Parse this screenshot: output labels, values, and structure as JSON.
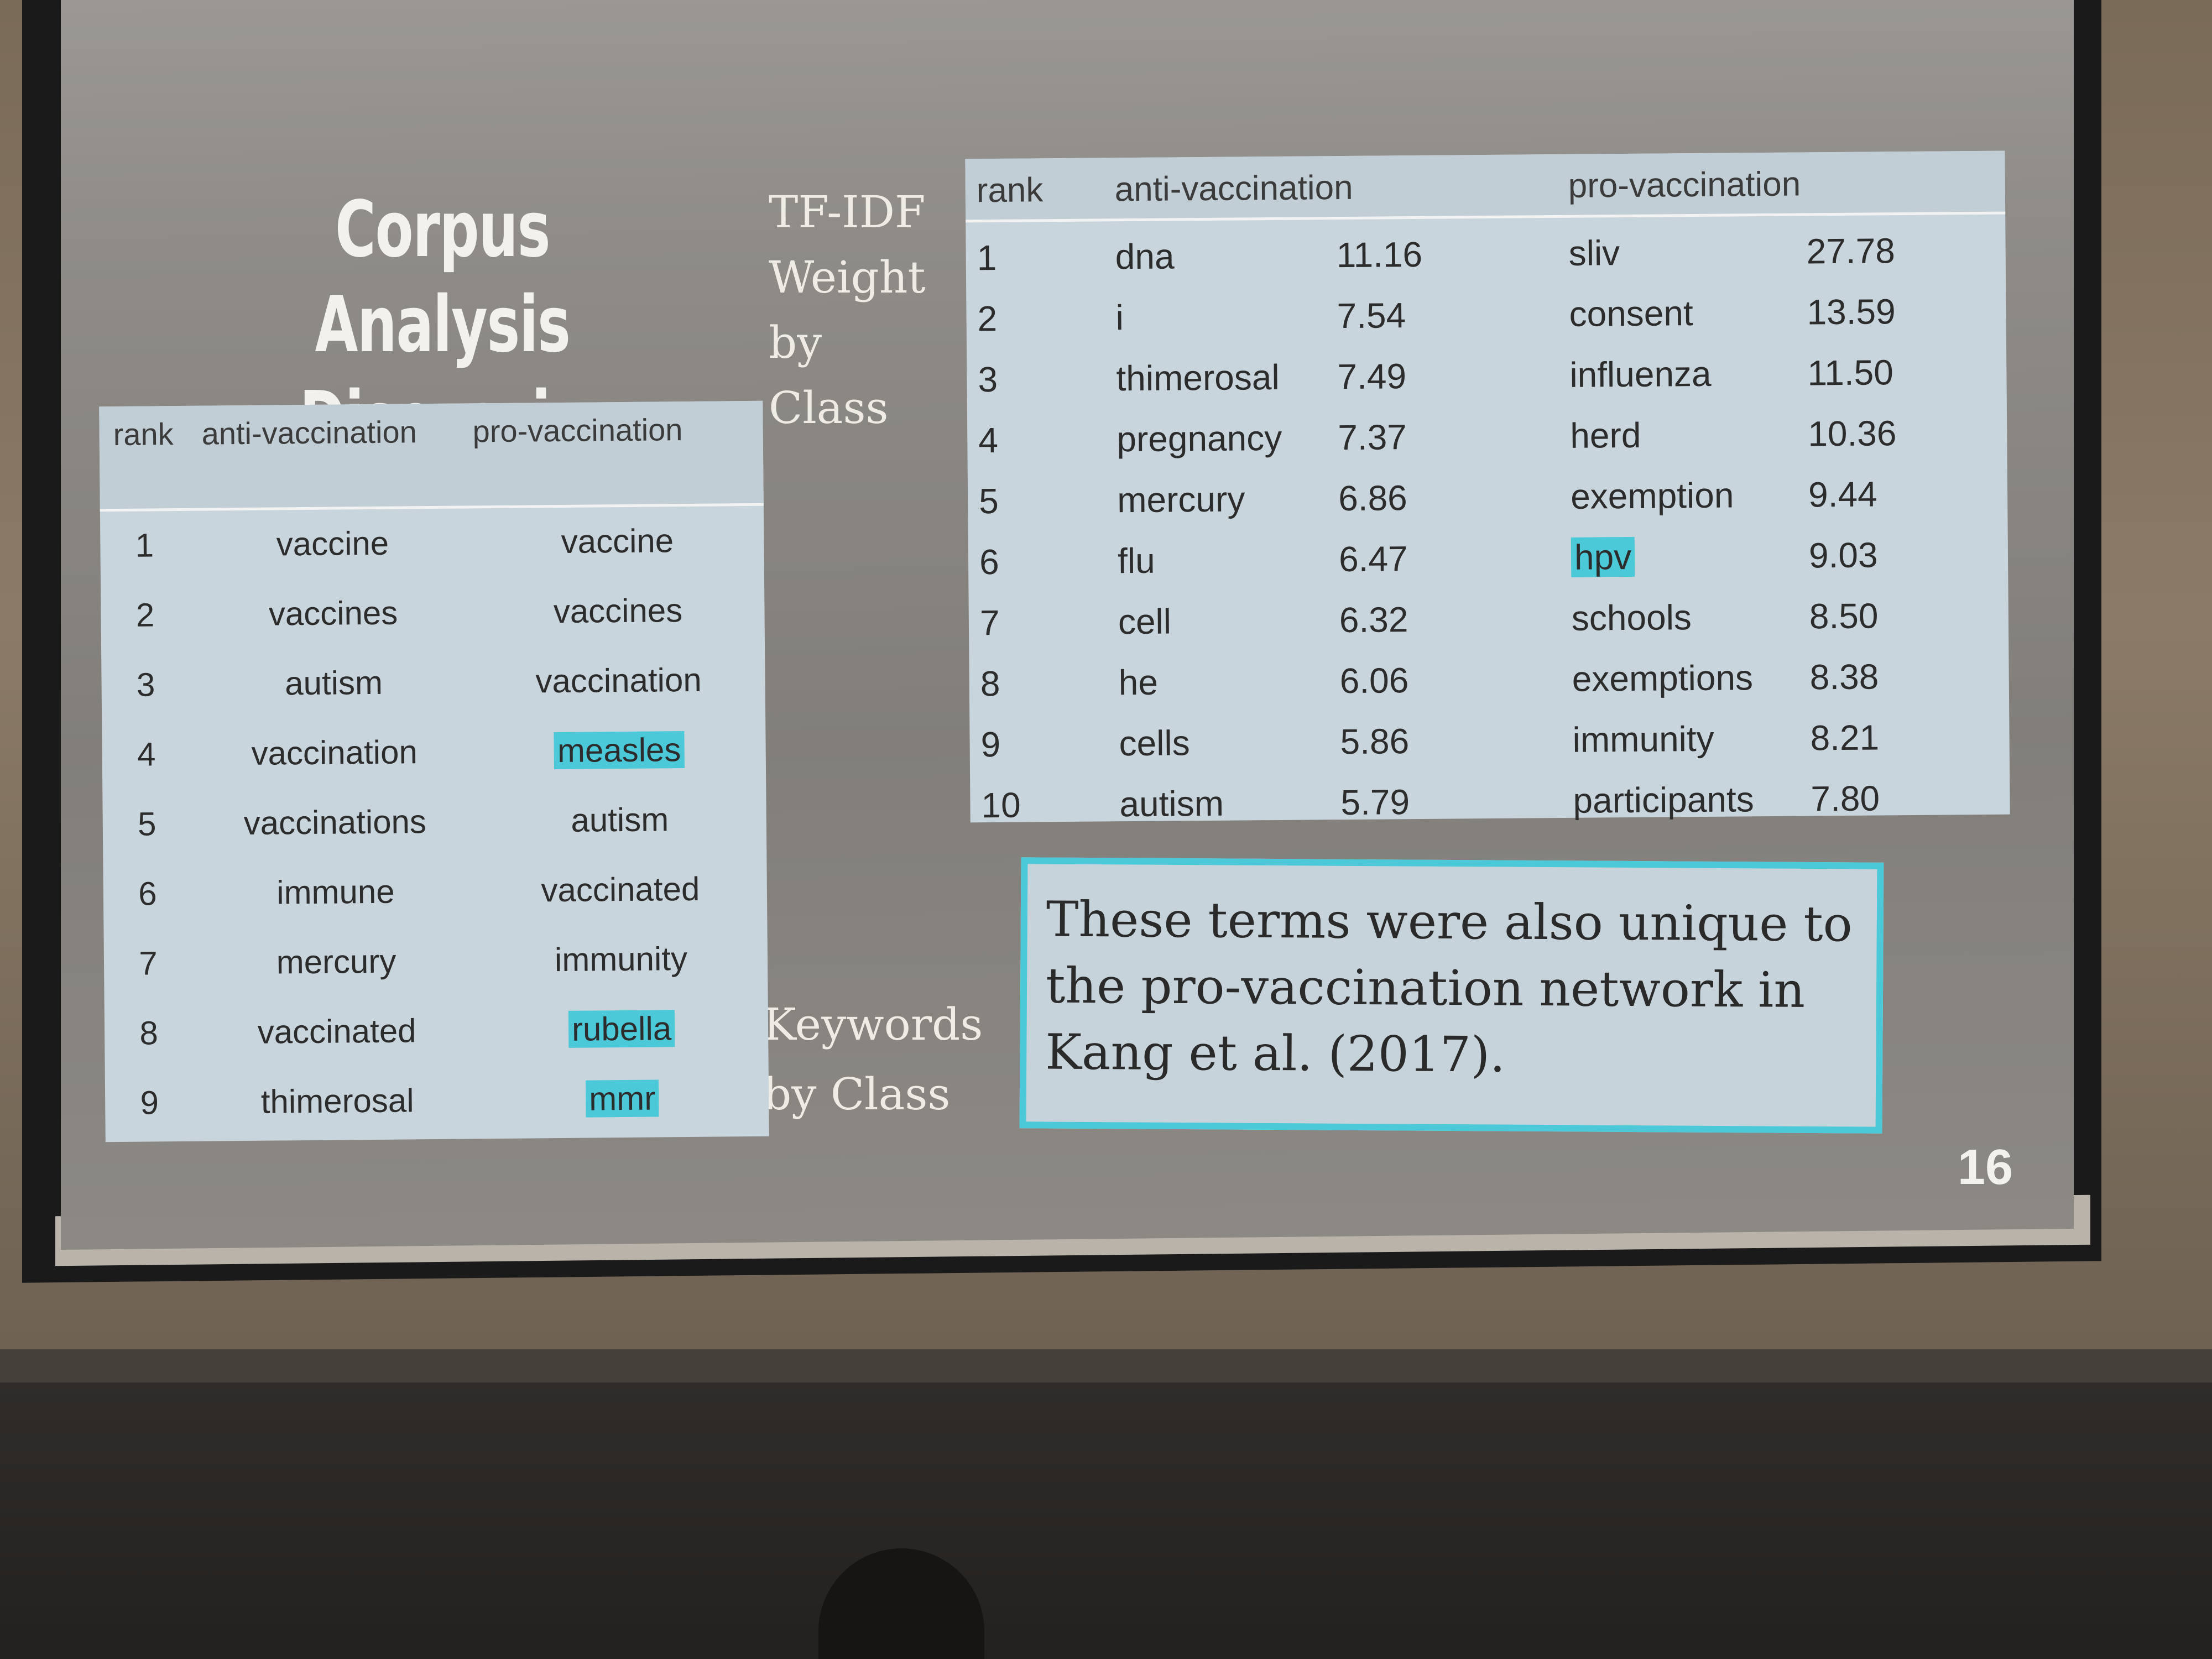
{
  "slide": {
    "title_line1": "Corpus Analysis",
    "title_line2": "- Discussion -",
    "tfidf_label": [
      "TF-IDF",
      "Weight",
      "by Class"
    ],
    "keywords_label": [
      "Keywords",
      "by Class"
    ],
    "slide_number": "16",
    "highlight_color": "#4cc9d9"
  },
  "keywords_table": {
    "headers": [
      "rank",
      "anti-vaccination",
      "pro-vaccination"
    ],
    "rows": [
      {
        "rank": "1",
        "anti": "vaccine",
        "pro": "vaccine",
        "pro_highlighted": false
      },
      {
        "rank": "2",
        "anti": "vaccines",
        "pro": "vaccines",
        "pro_highlighted": false
      },
      {
        "rank": "3",
        "anti": "autism",
        "pro": "vaccination",
        "pro_highlighted": false
      },
      {
        "rank": "4",
        "anti": "vaccination",
        "pro": "measles",
        "pro_highlighted": true
      },
      {
        "rank": "5",
        "anti": "vaccinations",
        "pro": "autism",
        "pro_highlighted": false
      },
      {
        "rank": "6",
        "anti": "immune",
        "pro": "vaccinated",
        "pro_highlighted": false
      },
      {
        "rank": "7",
        "anti": "mercury",
        "pro": "immunity",
        "pro_highlighted": false
      },
      {
        "rank": "8",
        "anti": "vaccinated",
        "pro": "rubella",
        "pro_highlighted": true
      },
      {
        "rank": "9",
        "anti": "thimerosal",
        "pro": "mmr",
        "pro_highlighted": true
      }
    ]
  },
  "tfidf_table": {
    "headers": [
      "rank",
      "anti-vaccination",
      "pro-vaccination"
    ],
    "rows": [
      {
        "rank": "1",
        "anti": "dna",
        "anti_w": "11.16",
        "pro": "sliv",
        "pro_w": "27.78",
        "pro_highlighted": false
      },
      {
        "rank": "2",
        "anti": "i",
        "anti_w": "7.54",
        "pro": "consent",
        "pro_w": "13.59",
        "pro_highlighted": false
      },
      {
        "rank": "3",
        "anti": "thimerosal",
        "anti_w": "7.49",
        "pro": "influenza",
        "pro_w": "11.50",
        "pro_highlighted": false
      },
      {
        "rank": "4",
        "anti": "pregnancy",
        "anti_w": "7.37",
        "pro": "herd",
        "pro_w": "10.36",
        "pro_highlighted": false
      },
      {
        "rank": "5",
        "anti": "mercury",
        "anti_w": "6.86",
        "pro": "exemption",
        "pro_w": "9.44",
        "pro_highlighted": false
      },
      {
        "rank": "6",
        "anti": "flu",
        "anti_w": "6.47",
        "pro": "hpv",
        "pro_w": "9.03",
        "pro_highlighted": true
      },
      {
        "rank": "7",
        "anti": "cell",
        "anti_w": "6.32",
        "pro": "schools",
        "pro_w": "8.50",
        "pro_highlighted": false
      },
      {
        "rank": "8",
        "anti": "he",
        "anti_w": "6.06",
        "pro": "exemptions",
        "pro_w": "8.38",
        "pro_highlighted": false
      },
      {
        "rank": "9",
        "anti": "cells",
        "anti_w": "5.86",
        "pro": "immunity",
        "pro_w": "8.21",
        "pro_highlighted": false
      },
      {
        "rank": "10",
        "anti": "autism",
        "anti_w": "5.79",
        "pro": "participants",
        "pro_w": "7.80",
        "pro_highlighted": false
      }
    ]
  },
  "note": {
    "lines": [
      "These terms were also unique to",
      "the pro-vaccination network in",
      "Kang et al. (2017)."
    ]
  }
}
